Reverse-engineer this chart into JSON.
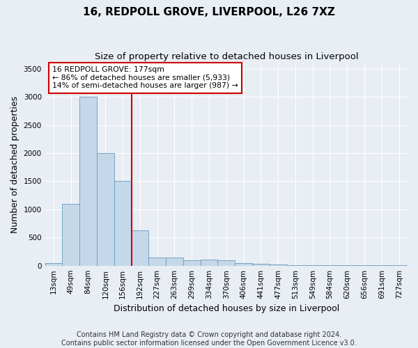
{
  "title1": "16, REDPOLL GROVE, LIVERPOOL, L26 7XZ",
  "title2": "Size of property relative to detached houses in Liverpool",
  "xlabel": "Distribution of detached houses by size in Liverpool",
  "ylabel": "Number of detached properties",
  "categories": [
    "13sqm",
    "49sqm",
    "84sqm",
    "120sqm",
    "156sqm",
    "192sqm",
    "227sqm",
    "263sqm",
    "299sqm",
    "334sqm",
    "370sqm",
    "406sqm",
    "441sqm",
    "477sqm",
    "513sqm",
    "549sqm",
    "584sqm",
    "620sqm",
    "656sqm",
    "691sqm",
    "727sqm"
  ],
  "values": [
    50,
    1100,
    3000,
    2000,
    1500,
    630,
    140,
    140,
    95,
    110,
    90,
    50,
    30,
    20,
    10,
    5,
    3,
    3,
    3,
    3,
    3
  ],
  "bar_color": "#c5d8ea",
  "bar_edge_color": "#6699bb",
  "vline_color": "#cc0000",
  "vline_pos": 5.0,
  "annotation_title": "16 REDPOLL GROVE: 177sqm",
  "annotation_line1": "← 86% of detached houses are smaller (5,933)",
  "annotation_line2": "14% of semi-detached houses are larger (987) →",
  "annotation_box_edgecolor": "#cc0000",
  "annotation_bg": "#ffffff",
  "ylim": [
    0,
    3600
  ],
  "yticks": [
    0,
    500,
    1000,
    1500,
    2000,
    2500,
    3000,
    3500
  ],
  "footer1": "Contains HM Land Registry data © Crown copyright and database right 2024.",
  "footer2": "Contains public sector information licensed under the Open Government Licence v3.0.",
  "bg_color": "#e8eef4",
  "plot_bg_color": "#e8eef4",
  "grid_color": "#ffffff",
  "title_fontsize": 11,
  "subtitle_fontsize": 9.5,
  "axis_label_fontsize": 9,
  "tick_fontsize": 7.5,
  "footer_fontsize": 7
}
